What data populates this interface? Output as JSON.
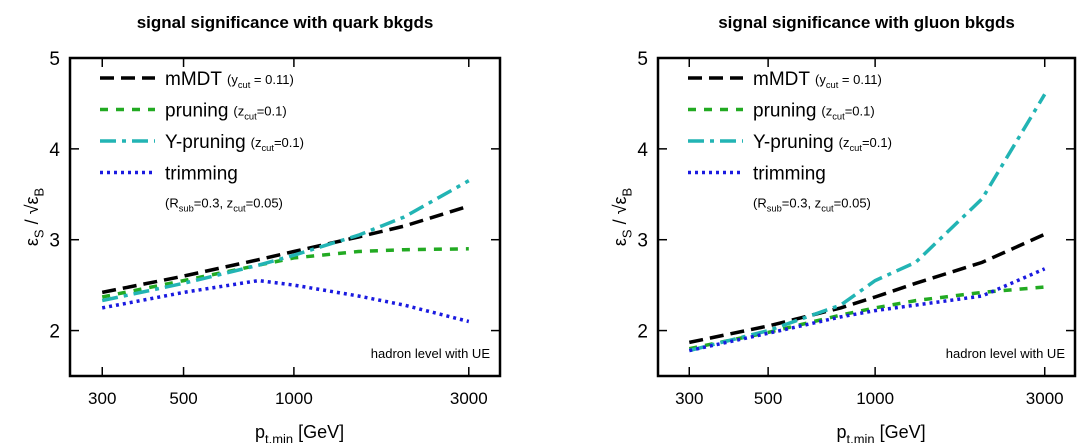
{
  "chart_data": [
    {
      "type": "line",
      "title": "signal significance with quark bkgds",
      "xlabel": [
        "p",
        "t,min",
        " [GeV]"
      ],
      "ylabel": [
        "ε",
        "S",
        " / √ε",
        "B"
      ],
      "annotation": "hadron level with UE",
      "xscale": "log",
      "xlim": [
        245,
        3650
      ],
      "xticks": [
        300,
        500,
        1000,
        3000
      ],
      "ylim": [
        1.5,
        5
      ],
      "yticks": [
        2,
        3,
        4,
        5
      ],
      "legend": "upper left",
      "x": [
        300,
        500,
        800,
        1000,
        1500,
        2000,
        3000
      ],
      "series": [
        {
          "name": "mMDT",
          "note": [
            "(y",
            "cut",
            " = 0.11)"
          ],
          "color": "#000000",
          "style": "dashed",
          "values": [
            2.42,
            2.6,
            2.78,
            2.87,
            3.03,
            3.15,
            3.37
          ]
        },
        {
          "name": "pruning",
          "note": [
            "(z",
            "cut",
            "=0.1)"
          ],
          "color": "#22aa22",
          "style": "short-dashed",
          "values": [
            2.37,
            2.55,
            2.72,
            2.8,
            2.87,
            2.89,
            2.9
          ]
        },
        {
          "name": "Y-pruning",
          "note": [
            "(z",
            "cut",
            "=0.1)"
          ],
          "color": "#22b4b4",
          "style": "dash-dot",
          "values": [
            2.33,
            2.52,
            2.72,
            2.83,
            3.05,
            3.25,
            3.65
          ]
        },
        {
          "name": "trimming",
          "note": [
            "(R",
            "sub",
            "=0.3, z",
            "cut",
            "=0.05)"
          ],
          "color": "#1a1ae0",
          "style": "dotted",
          "values": [
            2.25,
            2.42,
            2.55,
            2.5,
            2.38,
            2.28,
            2.1
          ]
        }
      ]
    },
    {
      "type": "line",
      "title": "signal significance with gluon bkgds",
      "xlabel": [
        "p",
        "t,min",
        " [GeV]"
      ],
      "ylabel": [
        "ε",
        "S",
        " / √ε",
        "B"
      ],
      "annotation": "hadron level with UE",
      "xscale": "log",
      "xlim": [
        245,
        3650
      ],
      "xticks": [
        300,
        500,
        1000,
        3000
      ],
      "ylim": [
        1.5,
        5
      ],
      "yticks": [
        2,
        3,
        4,
        5
      ],
      "legend": "upper left",
      "x": [
        300,
        500,
        800,
        1000,
        1300,
        2000,
        3000
      ],
      "series": [
        {
          "name": "mMDT",
          "note": [
            "(y",
            "cut",
            " = 0.11)"
          ],
          "color": "#000000",
          "style": "dashed",
          "values": [
            1.87,
            2.05,
            2.25,
            2.37,
            2.52,
            2.75,
            3.06
          ]
        },
        {
          "name": "pruning",
          "note": [
            "(z",
            "cut",
            "=0.1)"
          ],
          "color": "#22aa22",
          "style": "short-dashed",
          "values": [
            1.8,
            1.98,
            2.17,
            2.25,
            2.33,
            2.42,
            2.48
          ]
        },
        {
          "name": "Y-pruning",
          "note": [
            "(z",
            "cut",
            "=0.1)"
          ],
          "color": "#22b4b4",
          "style": "dash-dot",
          "values": [
            1.78,
            2.0,
            2.28,
            2.55,
            2.75,
            3.45,
            4.6
          ]
        },
        {
          "name": "trimming",
          "note": [
            "(R",
            "sub",
            "=0.3, z",
            "cut",
            "=0.05)"
          ],
          "color": "#1a1ae0",
          "style": "dotted",
          "values": [
            1.78,
            1.97,
            2.15,
            2.22,
            2.28,
            2.38,
            2.68
          ]
        }
      ]
    }
  ]
}
